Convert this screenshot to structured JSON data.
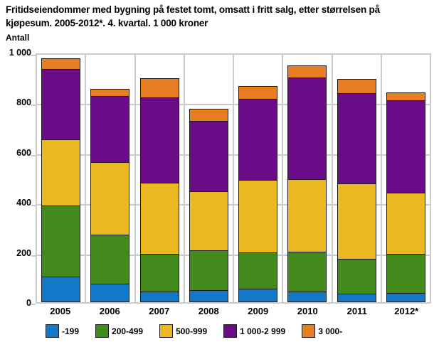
{
  "title": "Fritidseiendommer med bygning på festet tomt, omsatt i fritt salg, etter størrelsen på kjøpesum. 2005-2012*. 4. kvartal. 1 000 kroner",
  "y_axis_label": "Antall",
  "colors": {
    "grid": "#cccccc",
    "segment_border": "#1a1a1a",
    "text": "#000000"
  },
  "chart_data": {
    "type": "bar",
    "stacked": true,
    "title": "Fritidseiendommer med bygning på festet tomt, omsatt i fritt salg, etter størrelsen på kjøpesum. 2005-2012*. 4. kvartal. 1 000 kroner",
    "ylabel": "Antall",
    "xlabel": "",
    "ylim": [
      0,
      1000
    ],
    "yticks": [
      0,
      200,
      400,
      600,
      800,
      1000
    ],
    "ytick_labels": [
      "0",
      "200",
      "400",
      "600",
      "800",
      "1 000"
    ],
    "grid": true,
    "legend_position": "bottom",
    "categories": [
      "2005",
      "2006",
      "2007",
      "2008",
      "2009",
      "2010",
      "2011",
      "2012*"
    ],
    "series": [
      {
        "name": "-199",
        "color": "#1478c8",
        "values": [
          100,
          70,
          40,
          45,
          50,
          40,
          30,
          35
        ]
      },
      {
        "name": "200-499",
        "color": "#418a1b",
        "values": [
          285,
          195,
          150,
          160,
          145,
          160,
          140,
          155
        ]
      },
      {
        "name": "500-999",
        "color": "#ecb81f",
        "values": [
          265,
          290,
          285,
          235,
          290,
          290,
          300,
          245
        ]
      },
      {
        "name": "1 000-2 999",
        "color": "#6a0c87",
        "values": [
          280,
          265,
          340,
          280,
          325,
          405,
          360,
          370
        ]
      },
      {
        "name": "3 000-",
        "color": "#e87e24",
        "values": [
          45,
          30,
          80,
          50,
          55,
          50,
          60,
          35
        ]
      }
    ]
  }
}
